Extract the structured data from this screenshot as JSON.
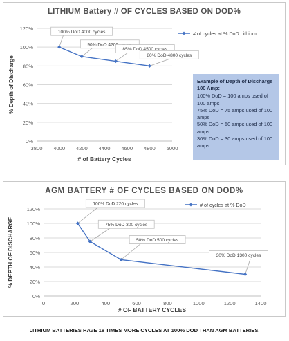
{
  "chart_data": [
    {
      "type": "line",
      "title": "LITHIUM Battery # OF CYCLES BASED ON DOD%",
      "xlabel": "# of Battery Cycles",
      "ylabel": "% Depth of Discharge",
      "xlim": [
        3800,
        5000
      ],
      "ylim": [
        0,
        120
      ],
      "x_ticks": [
        3800,
        4000,
        4200,
        4400,
        4600,
        4800,
        5000
      ],
      "y_ticks": [
        "0%",
        "20%",
        "40%",
        "60%",
        "80%",
        "100%",
        "120%"
      ],
      "grid": "horizontal",
      "legend_position": "top-right",
      "series": [
        {
          "name": "# of cycles at % DoD Lithium",
          "x": [
            4000,
            4200,
            4500,
            4800
          ],
          "y": [
            100,
            90,
            85,
            80
          ]
        }
      ],
      "annotations": [
        "100% DoD 4000 cycles",
        "90% DoD 4200 cycles",
        "85% DoD 4500 cycles",
        "80% DoD 4800 cycles"
      ],
      "color": "#4472c4"
    },
    {
      "type": "line",
      "title": "AGM BATTERY # OF CYCLES BASED ON DOD%",
      "xlabel": "# OF BATTERY CYCLES",
      "ylabel": "% DEPTH OF DISCHARGE",
      "xlim": [
        0,
        1400
      ],
      "ylim": [
        0,
        120
      ],
      "x_ticks": [
        0,
        200,
        400,
        600,
        800,
        1000,
        1200,
        1400
      ],
      "y_ticks": [
        "0%",
        "20%",
        "40%",
        "60%",
        "80%",
        "100%",
        "120%"
      ],
      "grid": "horizontal",
      "legend_position": "top-right",
      "series": [
        {
          "name": "# of cycles at % DoD",
          "x": [
            220,
            300,
            500,
            1300
          ],
          "y": [
            100,
            75,
            50,
            30
          ]
        }
      ],
      "annotations": [
        "100% DoD 220 cycles",
        "75% DoD 300 cycles",
        "50% DoD 500 cycles",
        "30% DoD 1300 cycles"
      ],
      "color": "#4472c4"
    }
  ],
  "note": {
    "heading": "Example of Depth of Discharge 100 Amp:",
    "lines": [
      "100% DoD = 100 amps used of 100 amps",
      "75% DoD = 75 amps used of 100 amps",
      "50% DoD = 50 amps used of 100 amps",
      "30% DoD = 30 amps used of 100 amps"
    ]
  },
  "footer": "LITHIUM BATTERIES HAVE 18 TIMES MORE CYCLES AT 100% DOD THAN AGM BATTERIES."
}
